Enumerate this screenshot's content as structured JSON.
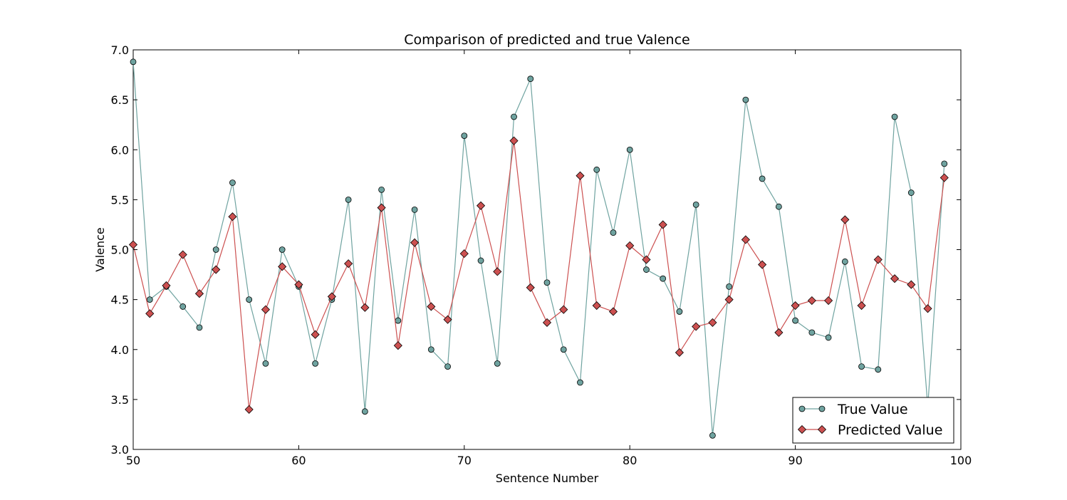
{
  "chart_data": {
    "type": "line",
    "title": "Comparison of predicted and true Valence",
    "xlabel": "Sentence Number",
    "ylabel": "Valence",
    "xlim": [
      50,
      100
    ],
    "ylim": [
      3.0,
      7.0
    ],
    "xticks": [
      50,
      60,
      70,
      80,
      90,
      100
    ],
    "yticks": [
      3.0,
      3.5,
      4.0,
      4.5,
      5.0,
      5.5,
      6.0,
      6.5,
      7.0
    ],
    "grid": false,
    "legend_position": "bottom-right",
    "x": [
      50,
      51,
      52,
      53,
      54,
      55,
      56,
      57,
      58,
      59,
      60,
      61,
      62,
      63,
      64,
      65,
      66,
      67,
      68,
      69,
      70,
      71,
      72,
      73,
      74,
      75,
      76,
      77,
      78,
      79,
      80,
      81,
      82,
      83,
      84,
      85,
      86,
      87,
      88,
      89,
      90,
      91,
      92,
      93,
      94,
      95,
      96,
      97,
      98,
      99
    ],
    "series": [
      {
        "name": "True Value",
        "marker": "circle",
        "color": "#6fa3a0",
        "values": [
          6.88,
          4.5,
          4.63,
          4.43,
          4.22,
          5.0,
          5.67,
          4.5,
          3.86,
          5.0,
          4.63,
          3.86,
          4.5,
          5.5,
          3.38,
          5.6,
          4.29,
          5.4,
          4.0,
          3.83,
          6.14,
          4.89,
          3.86,
          6.33,
          6.71,
          4.67,
          4.0,
          3.67,
          5.8,
          5.17,
          6.0,
          4.8,
          4.71,
          4.38,
          5.45,
          3.14,
          4.63,
          6.5,
          5.71,
          5.43,
          4.29,
          4.17,
          4.12,
          4.88,
          3.83,
          3.8,
          6.33,
          5.57,
          3.43,
          5.86
        ]
      },
      {
        "name": "Predicted Value",
        "marker": "diamond",
        "color": "#cc5050",
        "values": [
          5.05,
          4.36,
          4.64,
          4.95,
          4.56,
          4.8,
          5.33,
          3.4,
          4.4,
          4.83,
          4.65,
          4.15,
          4.53,
          4.86,
          4.42,
          5.42,
          4.04,
          5.07,
          4.43,
          4.3,
          4.96,
          5.44,
          4.78,
          6.09,
          4.62,
          4.27,
          4.4,
          5.74,
          4.44,
          4.38,
          5.04,
          4.9,
          5.25,
          3.97,
          4.23,
          4.27,
          4.5,
          5.1,
          4.85,
          4.17,
          4.44,
          4.49,
          4.49,
          5.3,
          4.44,
          4.9,
          4.71,
          4.65,
          4.41,
          5.72
        ]
      }
    ]
  }
}
